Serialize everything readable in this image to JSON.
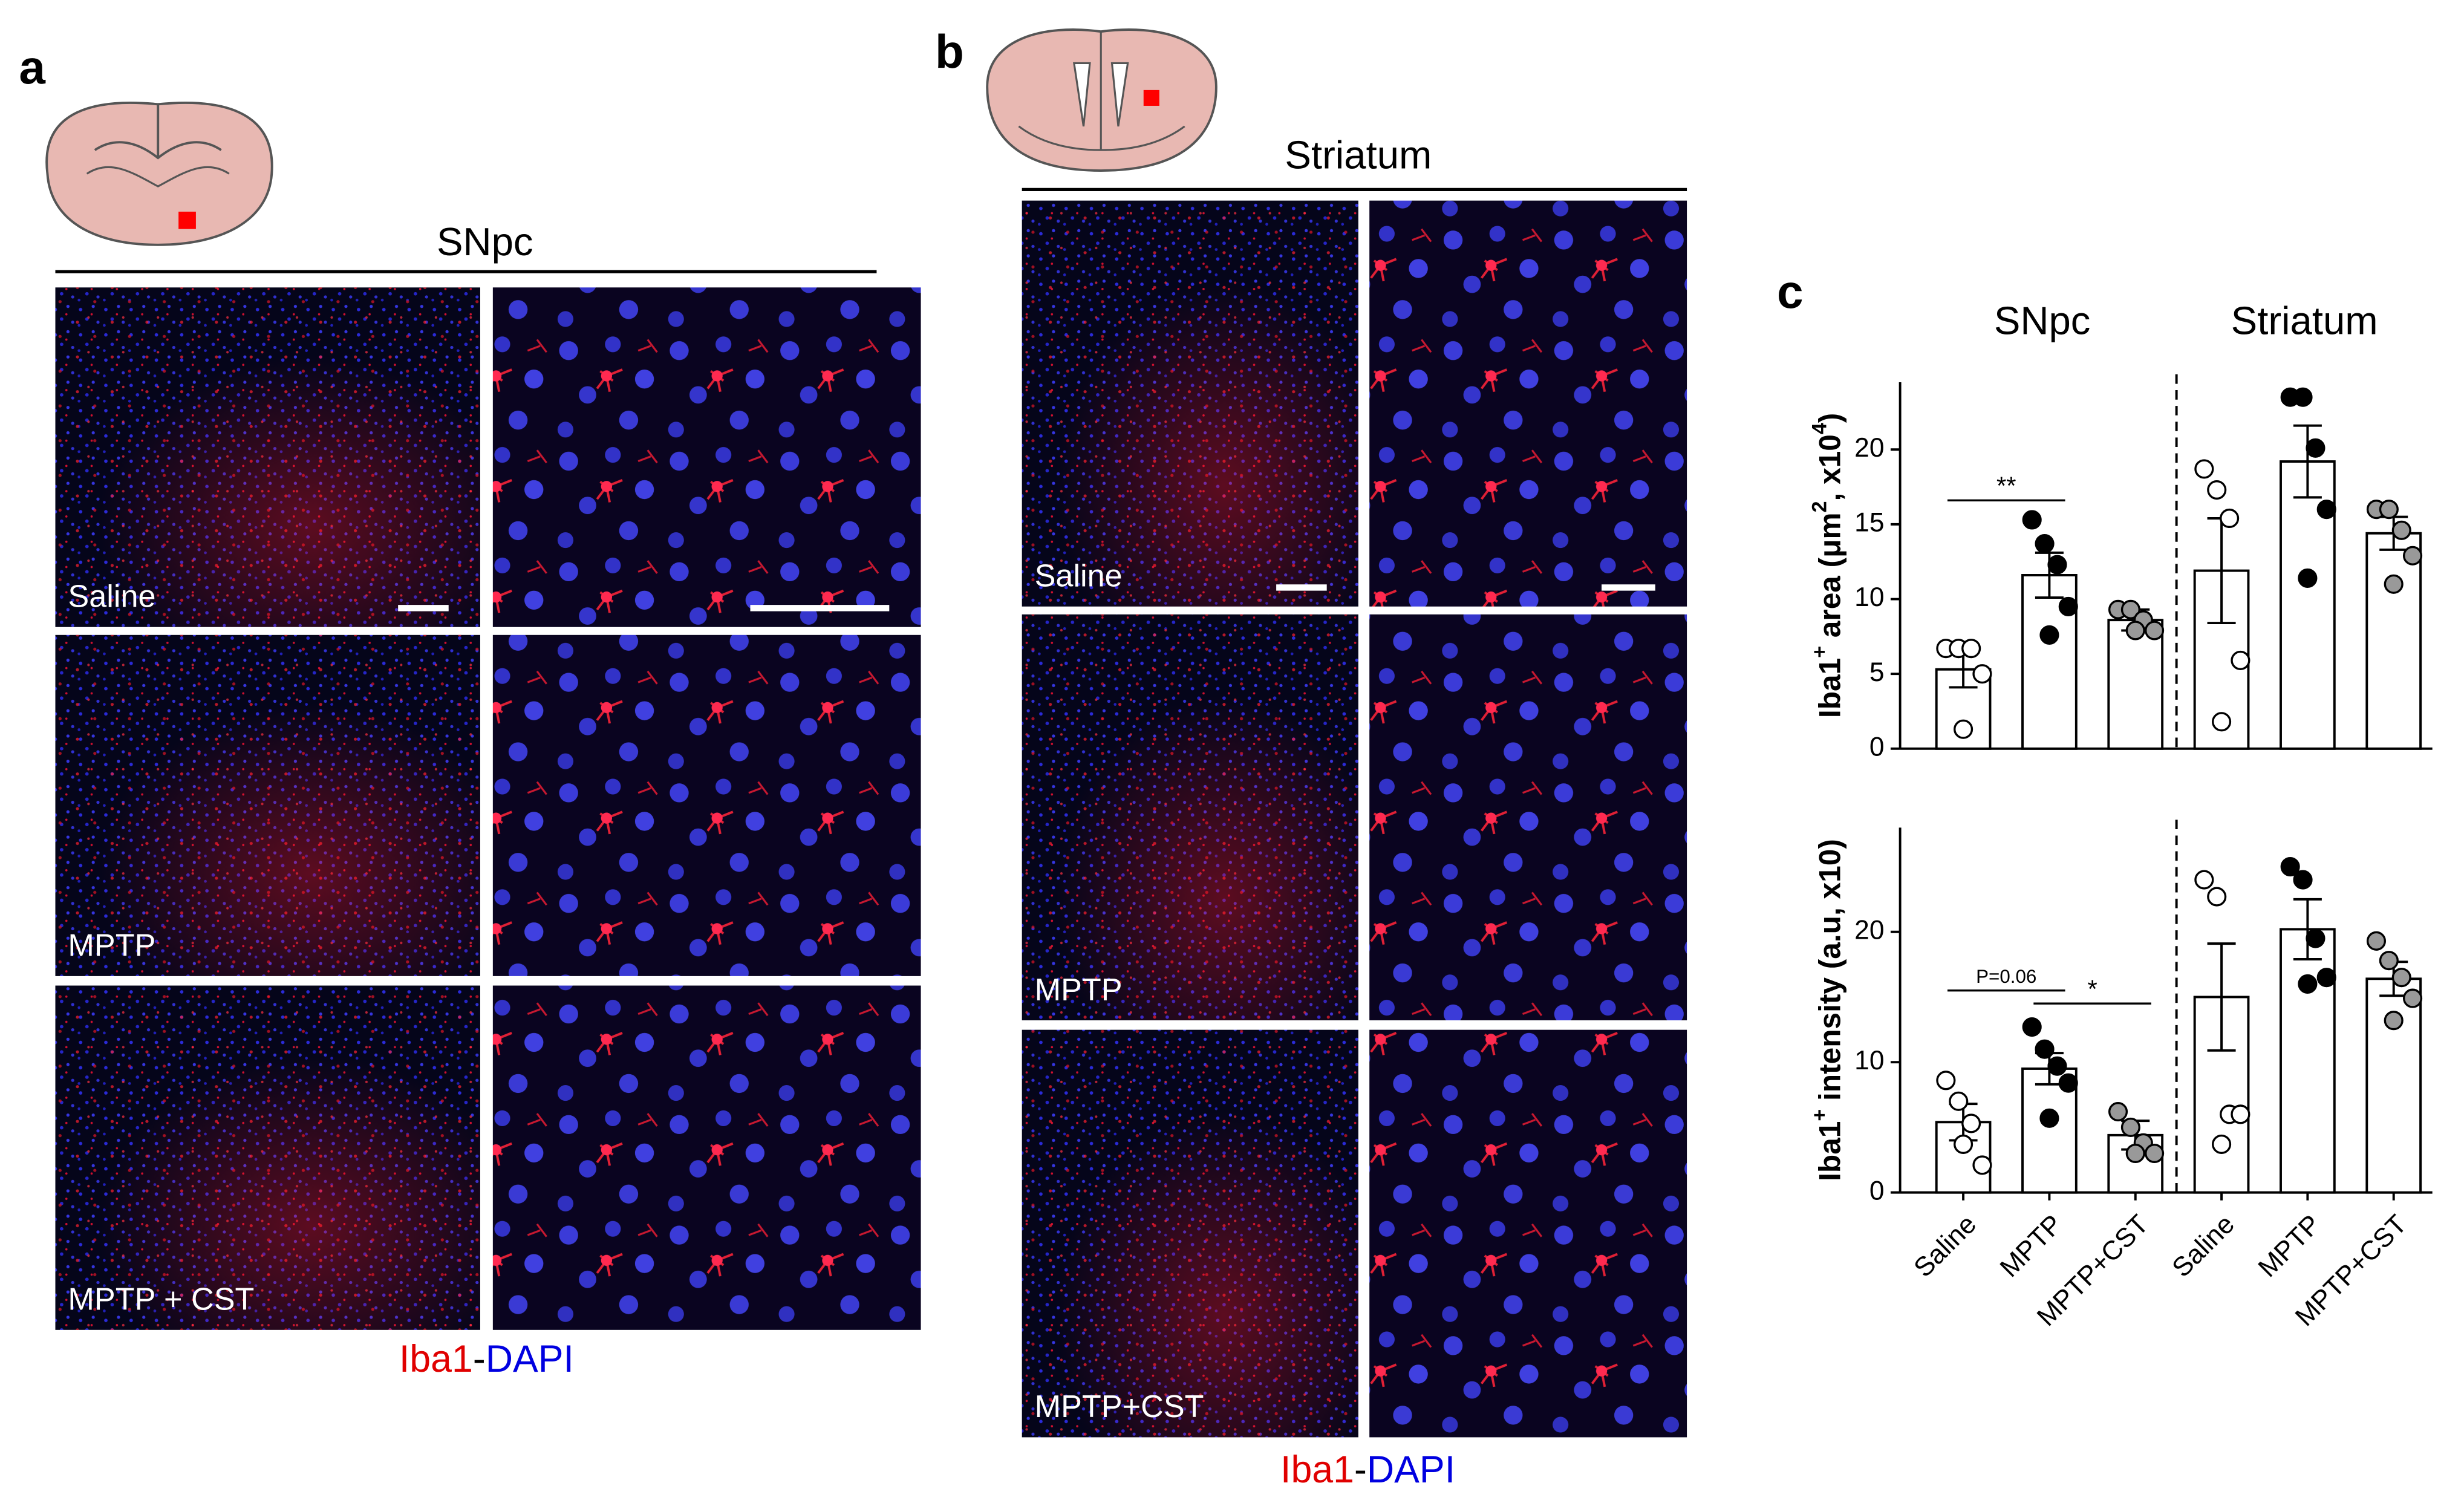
{
  "panels": {
    "a": {
      "label": "a",
      "title": "SNpc",
      "rows": [
        "Saline",
        "MPTP",
        "MPTP + CST"
      ],
      "legend": [
        "Iba1",
        "-",
        "DAPI"
      ]
    },
    "b": {
      "label": "b",
      "title": "Striatum",
      "rows": [
        "Saline",
        "MPTP",
        "MPTP+CST"
      ],
      "legend": [
        "Iba1",
        "-",
        "DAPI"
      ]
    },
    "c": {
      "label": "c"
    }
  },
  "chart_data": [
    {
      "type": "bar",
      "group_labels": [
        "SNpc",
        "Striatum"
      ],
      "ylabel_parts": [
        "Iba1",
        "+",
        " area (μm",
        "2",
        ", x10",
        "4",
        ")"
      ],
      "ylim": [
        0,
        24.5
      ],
      "yticks": [
        0,
        5,
        10,
        15,
        20
      ],
      "values": [
        5.3,
        11.6,
        8.6,
        11.9,
        19.2,
        14.4
      ],
      "errors": [
        1.2,
        1.5,
        0.7,
        3.5,
        2.4,
        1.1
      ],
      "points": [
        [
          6.7,
          6.7,
          6.7,
          5.0,
          1.3
        ],
        [
          15.3,
          13.7,
          12.3,
          9.5,
          7.6
        ],
        [
          9.3,
          9.3,
          8.6,
          7.9,
          7.9
        ],
        [
          18.7,
          17.3,
          15.4,
          5.9,
          1.8
        ],
        [
          23.5,
          23.5,
          20.1,
          16.0,
          11.4
        ],
        [
          16.0,
          16.0,
          14.6,
          12.9,
          11.0
        ]
      ],
      "point_colors": [
        "#ffffff",
        "#000000",
        "#999999",
        "#ffffff",
        "#000000",
        "#999999"
      ],
      "bar_color": "#ffffff",
      "annotations": [
        {
          "text": "**",
          "from": 0,
          "to": 1,
          "value": 16.6
        }
      ]
    },
    {
      "type": "bar",
      "categories": [
        "Saline",
        "MPTP",
        "MPTP+CST",
        "Saline",
        "MPTP",
        "MPTP+CST"
      ],
      "ylabel_parts": [
        "Iba1",
        "+",
        " intensity (a.u, x10)"
      ],
      "ylim": [
        0,
        28
      ],
      "yticks": [
        0,
        10,
        20
      ],
      "values": [
        5.4,
        9.5,
        4.4,
        15.0,
        20.2,
        16.4
      ],
      "errors": [
        1.4,
        1.2,
        1.1,
        4.1,
        2.3,
        1.3
      ],
      "points": [
        [
          8.6,
          7.0,
          5.3,
          2.1,
          3.7
        ],
        [
          12.7,
          11.0,
          9.7,
          8.4,
          5.7
        ],
        [
          6.2,
          5.0,
          3.8,
          3.0,
          3.0
        ],
        [
          24.0,
          22.7,
          6.0,
          6.0,
          3.7
        ],
        [
          25.0,
          24.0,
          19.5,
          16.5,
          16.0
        ],
        [
          19.3,
          17.8,
          16.5,
          14.9,
          13.2
        ]
      ],
      "point_colors": [
        "#ffffff",
        "#000000",
        "#999999",
        "#ffffff",
        "#000000",
        "#999999"
      ],
      "bar_color": "#ffffff",
      "annotations": [
        {
          "text": "P=0.06",
          "from": 0,
          "to": 1,
          "value": 15.5
        },
        {
          "text": "*",
          "from": 1,
          "to": 2,
          "value": 14.5
        }
      ]
    }
  ]
}
